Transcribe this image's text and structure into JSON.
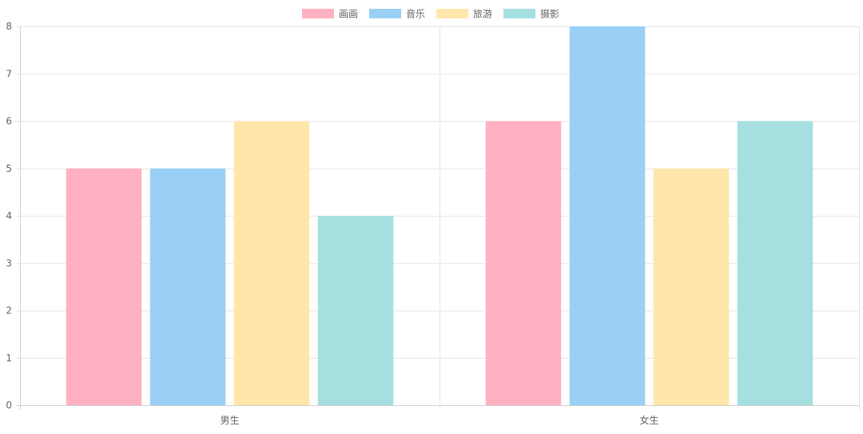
{
  "chart_data": {
    "type": "bar",
    "categories": [
      "男生",
      "女生"
    ],
    "series": [
      {
        "name": "画画",
        "values": [
          5,
          6
        ],
        "color": "#FFB1C1"
      },
      {
        "name": "音乐",
        "values": [
          5,
          8
        ],
        "color": "#9AD0F5"
      },
      {
        "name": "旅游",
        "values": [
          6,
          5
        ],
        "color": "#FFE6AA"
      },
      {
        "name": "摄影",
        "values": [
          4,
          6
        ],
        "color": "#A5DFDF"
      }
    ],
    "yticks": [
      "0",
      "1",
      "2",
      "3",
      "4",
      "5",
      "6",
      "7",
      "8"
    ],
    "ylim": [
      0,
      8
    ],
    "grid": true,
    "legend": "top-center",
    "title": "",
    "xlabel": "",
    "ylabel": ""
  }
}
